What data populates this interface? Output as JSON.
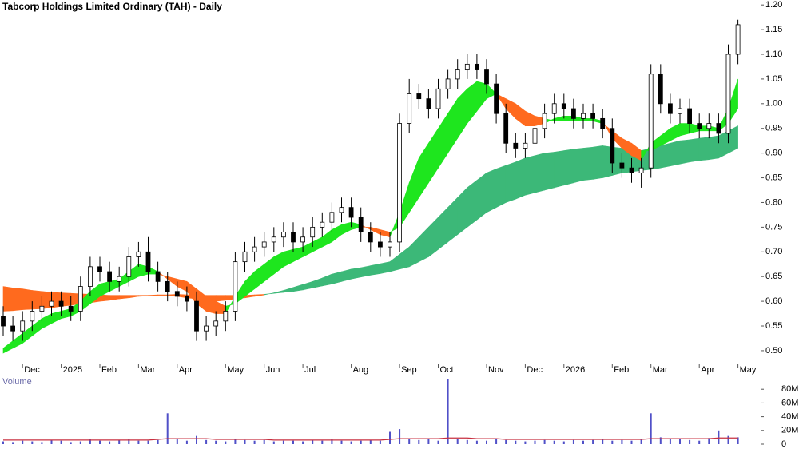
{
  "chart_data": {
    "type": "candlestick",
    "title": "Tabcorp Holdings Limited Ordinary (TAH) - Daily",
    "categories": [
      null,
      null,
      "Dec",
      null,
      null,
      null,
      "2025",
      null,
      null,
      null,
      "Feb",
      null,
      null,
      null,
      "Mar",
      null,
      null,
      null,
      "Apr",
      null,
      null,
      null,
      null,
      "May",
      null,
      null,
      null,
      "Jun",
      null,
      null,
      null,
      "Jul",
      null,
      null,
      null,
      null,
      "Aug",
      null,
      null,
      null,
      null,
      "Sep",
      null,
      null,
      null,
      "Oct",
      null,
      null,
      null,
      null,
      "Nov",
      null,
      null,
      null,
      "Dec",
      null,
      null,
      null,
      "2026",
      null,
      null,
      null,
      null,
      "Feb",
      null,
      null,
      null,
      "Mar",
      null,
      null,
      null,
      null,
      "Apr",
      null,
      null,
      null,
      "May"
    ],
    "open": [
      0.57,
      0.55,
      0.54,
      0.56,
      0.58,
      0.59,
      0.6,
      0.59,
      0.58,
      0.63,
      0.67,
      0.66,
      0.64,
      0.65,
      0.69,
      0.7,
      0.66,
      0.64,
      0.62,
      0.61,
      0.6,
      0.54,
      0.55,
      0.56,
      0.58,
      0.68,
      0.7,
      0.71,
      0.72,
      0.73,
      0.74,
      0.72,
      0.73,
      0.75,
      0.76,
      0.78,
      0.79,
      0.77,
      0.74,
      0.72,
      0.71,
      0.72,
      0.96,
      1.02,
      1.01,
      0.99,
      1.03,
      1.05,
      1.07,
      1.08,
      1.07,
      1.04,
      0.98,
      0.92,
      0.91,
      0.92,
      0.95,
      0.98,
      1.0,
      0.99,
      0.97,
      0.98,
      0.97,
      0.95,
      0.88,
      0.87,
      0.86,
      0.87,
      1.06,
      1.0,
      0.98,
      0.99,
      0.96,
      0.95,
      0.96,
      0.94,
      1.1
    ],
    "high": [
      0.59,
      0.57,
      0.58,
      0.6,
      0.61,
      0.62,
      0.62,
      0.61,
      0.65,
      0.69,
      0.69,
      0.68,
      0.67,
      0.71,
      0.72,
      0.73,
      0.68,
      0.66,
      0.64,
      0.63,
      0.62,
      0.57,
      0.58,
      0.6,
      0.7,
      0.72,
      0.73,
      0.74,
      0.75,
      0.76,
      0.76,
      0.75,
      0.77,
      0.78,
      0.8,
      0.81,
      0.81,
      0.79,
      0.76,
      0.74,
      0.74,
      0.98,
      1.05,
      1.04,
      1.03,
      1.05,
      1.07,
      1.09,
      1.1,
      1.1,
      1.09,
      1.06,
      1.0,
      0.94,
      0.94,
      0.97,
      1.0,
      1.02,
      1.02,
      1.01,
      1.0,
      1.0,
      0.99,
      0.97,
      0.9,
      0.89,
      0.89,
      1.08,
      1.08,
      1.02,
      1.01,
      1.01,
      0.98,
      0.98,
      0.98,
      1.12,
      1.17
    ],
    "low": [
      0.53,
      0.52,
      0.52,
      0.54,
      0.56,
      0.57,
      0.57,
      0.56,
      0.56,
      0.61,
      0.64,
      0.62,
      0.62,
      0.63,
      0.67,
      0.64,
      0.62,
      0.6,
      0.59,
      0.58,
      0.52,
      0.52,
      0.53,
      0.54,
      0.56,
      0.66,
      0.68,
      0.69,
      0.7,
      0.71,
      0.7,
      0.7,
      0.71,
      0.73,
      0.74,
      0.76,
      0.75,
      0.72,
      0.7,
      0.69,
      0.69,
      0.7,
      0.94,
      0.99,
      0.97,
      0.97,
      1.01,
      1.03,
      1.05,
      1.05,
      1.02,
      0.96,
      0.9,
      0.89,
      0.89,
      0.9,
      0.93,
      0.96,
      0.97,
      0.95,
      0.95,
      0.95,
      0.93,
      0.86,
      0.85,
      0.84,
      0.83,
      0.85,
      0.98,
      0.96,
      0.96,
      0.94,
      0.93,
      0.93,
      0.92,
      0.92,
      1.08
    ],
    "close": [
      0.55,
      0.54,
      0.56,
      0.58,
      0.59,
      0.6,
      0.59,
      0.58,
      0.63,
      0.67,
      0.66,
      0.64,
      0.65,
      0.69,
      0.7,
      0.66,
      0.64,
      0.62,
      0.61,
      0.6,
      0.54,
      0.55,
      0.56,
      0.58,
      0.68,
      0.7,
      0.71,
      0.72,
      0.73,
      0.74,
      0.72,
      0.73,
      0.75,
      0.76,
      0.78,
      0.79,
      0.77,
      0.74,
      0.72,
      0.71,
      0.72,
      0.96,
      1.02,
      1.01,
      0.99,
      1.03,
      1.05,
      1.07,
      1.08,
      1.07,
      1.04,
      0.98,
      0.92,
      0.91,
      0.92,
      0.95,
      0.98,
      1.0,
      0.99,
      0.97,
      0.98,
      0.97,
      0.95,
      0.88,
      0.87,
      0.86,
      0.87,
      1.06,
      1.0,
      0.98,
      0.99,
      0.96,
      0.95,
      0.96,
      0.94,
      1.1,
      1.16
    ],
    "up_color": "#ffffff",
    "down_color": "#000000",
    "short_band": {
      "fast": [
        0.505,
        0.52,
        0.535,
        0.55,
        0.565,
        0.575,
        0.58,
        0.585,
        0.6,
        0.62,
        0.635,
        0.64,
        0.645,
        0.66,
        0.675,
        0.67,
        0.66,
        0.645,
        0.63,
        0.62,
        0.595,
        0.58,
        0.575,
        0.575,
        0.61,
        0.64,
        0.66,
        0.675,
        0.69,
        0.7,
        0.705,
        0.71,
        0.72,
        0.73,
        0.745,
        0.755,
        0.76,
        0.755,
        0.745,
        0.735,
        0.73,
        0.78,
        0.84,
        0.89,
        0.92,
        0.95,
        0.98,
        1.01,
        1.03,
        1.045,
        1.04,
        1.02,
        0.99,
        0.97,
        0.955,
        0.955,
        0.96,
        0.97,
        0.975,
        0.975,
        0.97,
        0.97,
        0.965,
        0.93,
        0.91,
        0.895,
        0.885,
        0.92,
        0.935,
        0.95,
        0.96,
        0.96,
        0.955,
        0.955,
        0.95,
        0.99,
        1.05
      ],
      "slow": [
        0.495,
        0.505,
        0.515,
        0.53,
        0.545,
        0.555,
        0.565,
        0.57,
        0.58,
        0.595,
        0.61,
        0.62,
        0.63,
        0.64,
        0.65,
        0.655,
        0.655,
        0.65,
        0.645,
        0.64,
        0.625,
        0.61,
        0.6,
        0.59,
        0.595,
        0.61,
        0.625,
        0.64,
        0.655,
        0.67,
        0.68,
        0.69,
        0.7,
        0.71,
        0.72,
        0.735,
        0.745,
        0.75,
        0.75,
        0.745,
        0.74,
        0.75,
        0.78,
        0.81,
        0.84,
        0.87,
        0.9,
        0.93,
        0.96,
        0.985,
        1.01,
        1.02,
        1.01,
        1.0,
        0.985,
        0.975,
        0.97,
        0.965,
        0.965,
        0.965,
        0.965,
        0.965,
        0.96,
        0.945,
        0.93,
        0.92,
        0.905,
        0.905,
        0.915,
        0.925,
        0.935,
        0.94,
        0.945,
        0.945,
        0.945,
        0.96,
        0.99
      ],
      "up_color": "#1ee61e",
      "down_color": "#ff6a1e"
    },
    "long_band": {
      "fast": [
        0.58,
        0.581,
        0.583,
        0.584,
        0.585,
        0.587,
        0.59,
        0.592,
        0.595,
        0.597,
        0.6,
        0.602,
        0.605,
        0.607,
        0.61,
        0.611,
        0.612,
        0.611,
        0.61,
        0.607,
        0.605,
        0.602,
        0.6,
        0.602,
        0.605,
        0.607,
        0.61,
        0.613,
        0.617,
        0.622,
        0.628,
        0.634,
        0.64,
        0.647,
        0.655,
        0.66,
        0.665,
        0.668,
        0.672,
        0.676,
        0.68,
        0.695,
        0.71,
        0.73,
        0.75,
        0.77,
        0.79,
        0.81,
        0.83,
        0.845,
        0.86,
        0.868,
        0.875,
        0.882,
        0.89,
        0.895,
        0.9,
        0.902,
        0.905,
        0.908,
        0.91,
        0.912,
        0.915,
        0.912,
        0.91,
        0.907,
        0.905,
        0.91,
        0.915,
        0.92,
        0.925,
        0.927,
        0.93,
        0.932,
        0.935,
        0.945,
        0.955
      ],
      "slow": [
        0.63,
        0.627,
        0.625,
        0.622,
        0.62,
        0.618,
        0.617,
        0.616,
        0.615,
        0.614,
        0.613,
        0.612,
        0.612,
        0.612,
        0.612,
        0.612,
        0.613,
        0.613,
        0.614,
        0.613,
        0.613,
        0.612,
        0.612,
        0.612,
        0.612,
        0.612,
        0.613,
        0.614,
        0.616,
        0.618,
        0.62,
        0.623,
        0.627,
        0.631,
        0.635,
        0.64,
        0.645,
        0.649,
        0.653,
        0.656,
        0.66,
        0.665,
        0.67,
        0.68,
        0.69,
        0.705,
        0.72,
        0.735,
        0.75,
        0.765,
        0.78,
        0.79,
        0.8,
        0.807,
        0.815,
        0.82,
        0.825,
        0.83,
        0.835,
        0.84,
        0.845,
        0.847,
        0.85,
        0.855,
        0.86,
        0.862,
        0.865,
        0.867,
        0.87,
        0.874,
        0.878,
        0.882,
        0.885,
        0.887,
        0.89,
        0.9,
        0.91
      ],
      "up_color": "#3cb878",
      "down_color": "#ff6a1e"
    },
    "ylim": [
      0.474,
      1.21
    ],
    "yticks": [
      {
        "value": 1.2,
        "label": "1.20"
      },
      1.15,
      {
        "value": 1.1,
        "label": "1.10"
      },
      1.05,
      {
        "value": 1.0,
        "label": "1.00"
      },
      0.95,
      {
        "value": 0.9,
        "label": "0.90"
      },
      0.85,
      {
        "value": 0.8,
        "label": "0.80"
      },
      0.75,
      {
        "value": 0.7,
        "label": "0.70"
      },
      0.65,
      {
        "value": 0.6,
        "label": "0.60"
      },
      0.55,
      {
        "value": 0.5,
        "label": "0.50"
      }
    ],
    "volume": {
      "label": "Volume",
      "values": [
        4,
        3,
        5,
        4,
        3,
        6,
        5,
        3,
        4,
        8,
        5,
        4,
        6,
        7,
        5,
        5,
        6,
        45,
        8,
        5,
        12,
        6,
        5,
        4,
        8,
        6,
        5,
        6,
        4,
        5,
        5,
        4,
        6,
        5,
        7,
        5,
        4,
        5,
        6,
        5,
        18,
        22,
        8,
        6,
        7,
        5,
        95,
        7,
        6,
        5,
        5,
        8,
        6,
        5,
        4,
        5,
        6,
        5,
        4,
        6,
        5,
        6,
        7,
        5,
        6,
        5,
        8,
        45,
        10,
        8,
        7,
        6,
        5,
        9,
        20,
        12,
        10
      ],
      "color": "#5050c8",
      "average": {
        "values": [
          6,
          6,
          6,
          6,
          6,
          6,
          6,
          6,
          6,
          6,
          6,
          6,
          6,
          6,
          6,
          6,
          7,
          8,
          8,
          8,
          8,
          8,
          7,
          7,
          7,
          7,
          7,
          7,
          6,
          6,
          6,
          6,
          6,
          6,
          6,
          6,
          6,
          6,
          6,
          6,
          7,
          8,
          8,
          8,
          8,
          8,
          9,
          9,
          9,
          8,
          8,
          8,
          7,
          7,
          7,
          7,
          7,
          7,
          7,
          7,
          7,
          7,
          7,
          7,
          7,
          7,
          7,
          8,
          8,
          8,
          8,
          8,
          8,
          8,
          9,
          9,
          9
        ],
        "color": "#c83040"
      },
      "ylim": [
        0,
        100
      ],
      "yticks": [
        0,
        {
          "value": 20,
          "label": "20M"
        },
        {
          "value": 40,
          "label": "40M"
        },
        {
          "value": 60,
          "label": "60M"
        },
        {
          "value": 80,
          "label": "80M"
        }
      ]
    }
  }
}
